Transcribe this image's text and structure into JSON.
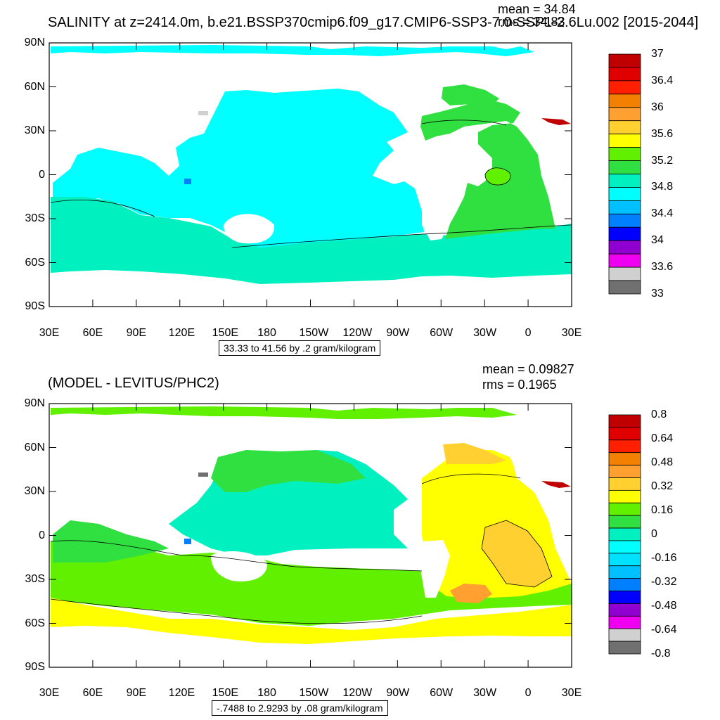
{
  "panels": [
    {
      "title": "SALINITY at z=2414.0m, b.e21.BSSP370cmip6.f09_g17.CMIP6-SSP3-7.0-SSP1-2.6Lu.002 [2015-2044]",
      "mean_text": "mean = 34.84",
      "rms_text": "rms = 34.83",
      "range_note": "33.33 to 41.56 by .2 gram/kilogram",
      "lat_ticks": [
        "90N",
        "60N",
        "30N",
        "0",
        "30S",
        "60S",
        "90S"
      ],
      "lon_ticks": [
        "30E",
        "60E",
        "90E",
        "120E",
        "150E",
        "180",
        "150W",
        "120W",
        "90W",
        "60W",
        "30W",
        "0",
        "30E"
      ],
      "colorbar": {
        "labels": [
          "37",
          "36.4",
          "36",
          "35.6",
          "35.2",
          "34.8",
          "34.4",
          "34",
          "33.6",
          "33"
        ],
        "colors": [
          "#c00000",
          "#e00000",
          "#ff2000",
          "#f38000",
          "#ffa030",
          "#ffd030",
          "#ffff00",
          "#60f000",
          "#30e040",
          "#00f0c0",
          "#00ffff",
          "#00c0ff",
          "#0080ff",
          "#0000ff",
          "#9000d0",
          "#f000f0",
          "#d0d0d0",
          "#707070"
        ]
      },
      "colors": {
        "ocean_main": "#00ffff",
        "ocean_south": "#00f0c0",
        "atlantic": "#30e040",
        "atl_blob": "#60f000",
        "red": "#c00000",
        "grey": "#d0d0d0",
        "blue": "#0080ff"
      }
    },
    {
      "title": "(MODEL - LEVITUS/PHC2)",
      "mean_text": "mean = 0.09827",
      "rms_text": "rms = 0.1965",
      "range_note": "-.7488 to 2.9293 by .08 gram/kilogram",
      "lat_ticks": [
        "90N",
        "60N",
        "30N",
        "0",
        "30S",
        "60S",
        "90S"
      ],
      "lon_ticks": [
        "30E",
        "60E",
        "90E",
        "120E",
        "150E",
        "180",
        "150W",
        "120W",
        "90W",
        "60W",
        "30W",
        "0",
        "30E"
      ],
      "colorbar": {
        "labels": [
          "0.8",
          "0.64",
          "0.48",
          "0.32",
          "0.16",
          "0",
          "-0.16",
          "-0.32",
          "-0.48",
          "-0.64",
          "-0.8"
        ],
        "colors": [
          "#c00000",
          "#e00000",
          "#ff2000",
          "#f38000",
          "#ffa030",
          "#ffd030",
          "#ffff00",
          "#60f000",
          "#30e040",
          "#00f0c0",
          "#00ffff",
          "#00e0ff",
          "#00c0ff",
          "#0080ff",
          "#0000ff",
          "#9000d0",
          "#f000f0",
          "#d0d0d0",
          "#707070"
        ]
      },
      "colors": {
        "green": "#60f000",
        "green2": "#30e040",
        "yellow": "#ffff00",
        "orange": "#ffd030",
        "orange2": "#ffa030",
        "cyan": "#00f0c0",
        "red": "#c00000",
        "grey": "#707070",
        "blue": "#0080ff"
      }
    }
  ]
}
